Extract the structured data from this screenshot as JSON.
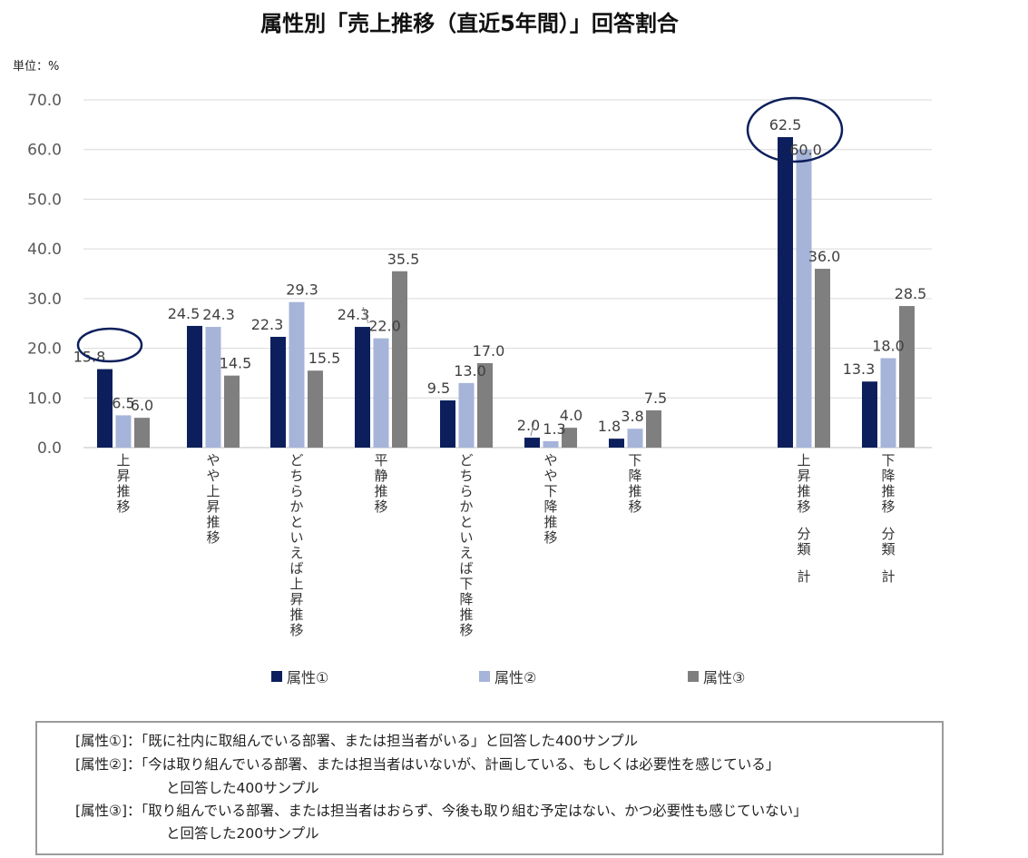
{
  "unit": "単位：%",
  "chart_data": {
    "type": "bar",
    "title": "属性別「売上推移（直近5年間）」回答割合",
    "ylim": [
      0,
      70
    ],
    "yticks": [
      "0.0",
      "10.0",
      "20.0",
      "30.0",
      "40.0",
      "50.0",
      "60.0",
      "70.0"
    ],
    "grid": true,
    "legend_position": "bottom",
    "categories": [
      "上昇推移",
      "やや上昇推移",
      "どちらかといえば上昇推移",
      "平静推移",
      "どちらかといえば下降推移",
      "やや下降推移",
      "下降推移",
      "上昇推移　分類　計",
      "下降推移　分類　計"
    ],
    "series": [
      {
        "name": "属性①",
        "color": "#0c1f5c",
        "values": [
          15.8,
          24.5,
          22.3,
          24.3,
          9.5,
          2.0,
          1.8,
          62.5,
          13.3
        ],
        "labels": [
          "15.8",
          "24.5",
          "22.3",
          "24.3",
          "9.5",
          "2.0",
          "1.8",
          "62.5",
          "13.3"
        ]
      },
      {
        "name": "属性②",
        "color": "#a6b4d9",
        "values": [
          6.5,
          24.3,
          29.3,
          22.0,
          13.0,
          1.3,
          3.8,
          60.0,
          18.0
        ],
        "labels": [
          "6.5",
          "24.3",
          "29.3",
          "22.0",
          "13.0",
          "1.3",
          "3.8",
          "60.0",
          "18.0"
        ]
      },
      {
        "name": "属性③",
        "color": "#7f7f7f",
        "values": [
          6.0,
          14.5,
          15.5,
          35.5,
          17.0,
          4.0,
          7.5,
          36.0,
          28.5
        ],
        "labels": [
          "6.0",
          "14.5",
          "15.5",
          "35.5",
          "17.0",
          "4.0",
          "7.5",
          "36.0",
          "28.5"
        ]
      }
    ],
    "highlight_circles": [
      "上昇推移 属性① 15.8",
      "上昇推移　分類　計 62.5 / 60.0"
    ]
  },
  "notes": {
    "line1": "[属性①]：「既に社内に取組んでいる部署、または担当者がいる」と回答した400サンプル",
    "line2": "[属性②]：「今は取り組んでいる部署、または担当者はいないが、計画している、もしくは必要性を感じている」",
    "line2b": "と回答した400サンプル",
    "line3": "[属性③]：「取り組んでいる部署、または担当者はおらず、今後も取り組む予定はない、かつ必要性も感じていない」",
    "line3b": "と回答した200サンプル"
  }
}
